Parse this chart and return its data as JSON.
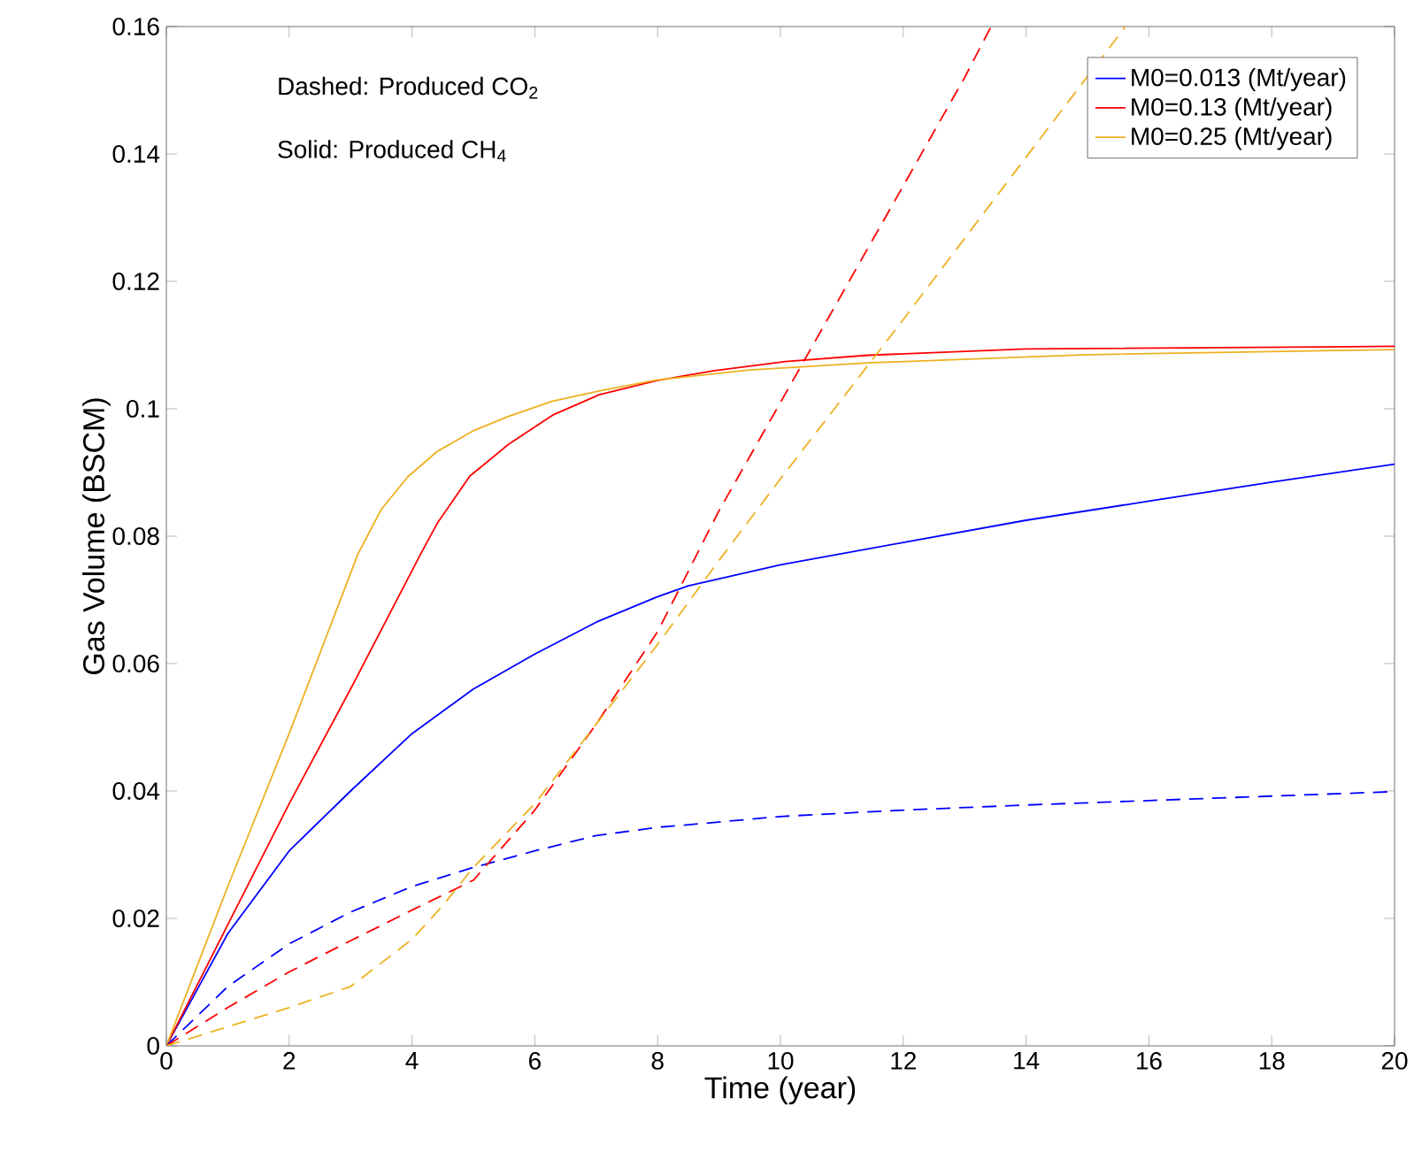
{
  "chart_data": {
    "type": "line",
    "xlabel": "Time (year)",
    "ylabel": "Gas Volume (BSCM)",
    "annotations": [
      "Dashed: Produced CO$_{2}$",
      "Solid: Produced CH$_{4}$"
    ],
    "xlim": [
      0,
      20
    ],
    "ylim": [
      0,
      0.16
    ],
    "xticks": [
      0,
      2,
      4,
      6,
      8,
      10,
      12,
      14,
      16,
      18,
      20
    ],
    "yticks": [
      0,
      0.02,
      0.04,
      0.06,
      0.08,
      0.1,
      0.12,
      0.14,
      0.16
    ],
    "grid": false,
    "legend": "top right",
    "marker": "none",
    "series": [
      {
        "name": "M0=0.013 (Mt/year)",
        "color": "#0000ff",
        "line_style": "solid",
        "x": [
          0,
          1,
          2,
          3,
          4,
          5,
          6,
          7,
          8,
          8.5,
          10,
          12,
          14,
          16,
          18,
          20
        ],
        "values": [
          0,
          0.0176,
          0.0306,
          0.04,
          0.049,
          0.056,
          0.0615,
          0.0665,
          0.0705,
          0.0722,
          0.0755,
          0.079,
          0.0825,
          0.0855,
          0.0885,
          0.0913
        ]
      },
      {
        "name": "M0=0.13 (Mt/year)",
        "color": "#ff0000",
        "line_style": "solid",
        "x": [
          0,
          1,
          2,
          3,
          4.13,
          4.41,
          4.94,
          5.57,
          6.29,
          7.05,
          7.97,
          8.93,
          10.08,
          11.42,
          14,
          20
        ],
        "values": [
          0,
          0.019,
          0.038,
          0.056,
          0.077,
          0.082,
          0.0894,
          0.0944,
          0.099,
          0.1022,
          0.1044,
          0.106,
          0.1074,
          0.1084,
          0.1094,
          0.1098
        ]
      },
      {
        "name": "M0=0.25 (Mt/year)",
        "color": "#edb120",
        "line_style": "solid",
        "x": [
          0,
          1,
          2,
          3.12,
          3.5,
          3.93,
          4.41,
          4.99,
          5.57,
          6.29,
          7.05,
          7.97,
          9.5,
          11.42,
          15,
          20
        ],
        "values": [
          0,
          0.025,
          0.049,
          0.0772,
          0.0842,
          0.0893,
          0.0933,
          0.0965,
          0.0988,
          0.1012,
          0.1028,
          0.1045,
          0.1061,
          0.1072,
          0.1085,
          0.1093
        ]
      },
      {
        "color": "#0000ff",
        "line_style": "dashed",
        "x": [
          0,
          1,
          2,
          3,
          4,
          5,
          6,
          7,
          8,
          8.5,
          10,
          12,
          14,
          16,
          18,
          20
        ],
        "values": [
          0,
          0.0093,
          0.016,
          0.021,
          0.025,
          0.028,
          0.0306,
          0.033,
          0.0343,
          0.0347,
          0.036,
          0.037,
          0.0378,
          0.0385,
          0.0392,
          0.0399
        ]
      },
      {
        "color": "#ff0000",
        "line_style": "dashed",
        "x": [
          0,
          1,
          2,
          3,
          4,
          5,
          6,
          7,
          8,
          9,
          10,
          11,
          12,
          13,
          13.43
        ],
        "values": [
          0,
          0.006,
          0.0116,
          0.0165,
          0.0213,
          0.026,
          0.037,
          0.0505,
          0.065,
          0.084,
          0.101,
          0.118,
          0.135,
          0.152,
          0.16
        ]
      },
      {
        "color": "#edb120",
        "line_style": "dashed",
        "x": [
          0,
          1,
          2,
          3,
          3.5,
          4,
          4.5,
          5,
          6,
          7,
          8,
          9,
          10,
          12,
          14,
          15.62
        ],
        "values": [
          0,
          0.003,
          0.006,
          0.0093,
          0.013,
          0.0167,
          0.022,
          0.028,
          0.038,
          0.0505,
          0.063,
          0.0762,
          0.089,
          0.114,
          0.1395,
          0.16
        ]
      }
    ]
  }
}
